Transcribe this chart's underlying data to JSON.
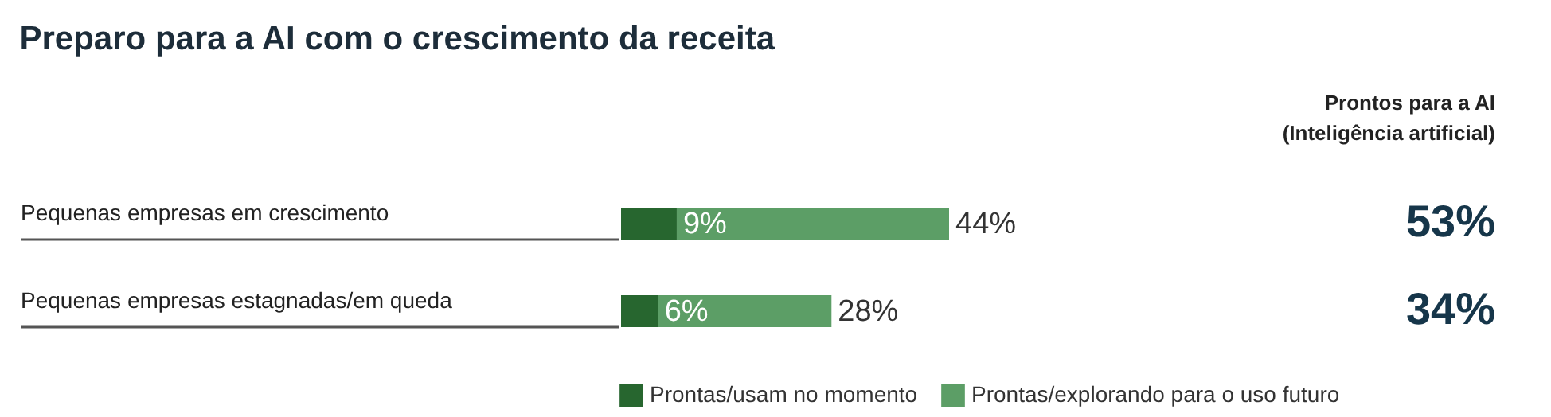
{
  "chart_data": {
    "type": "bar",
    "title": "Preparo para a AI com o crescimento da receita",
    "annotations": [
      "Prontos para a AI",
      "(Inteligência artificial)",
      "53%",
      "34%"
    ],
    "categories": [
      "Pequenas empresas em crescimento",
      "Pequenas empresas estagnadas/em queda"
    ],
    "orientation": "horizontal",
    "stacked": true,
    "legend": "bottom",
    "series": [
      {
        "name": "Prontas/usam no momento",
        "color": "#27662f",
        "values": [
          9,
          6
        ],
        "value_labels": [
          "9%",
          "6%"
        ]
      },
      {
        "name": "Prontas/explorando para o uso futuro",
        "color": "#5c9e66",
        "values": [
          44,
          28
        ],
        "value_labels": [
          "44%",
          "28%"
        ]
      }
    ]
  }
}
